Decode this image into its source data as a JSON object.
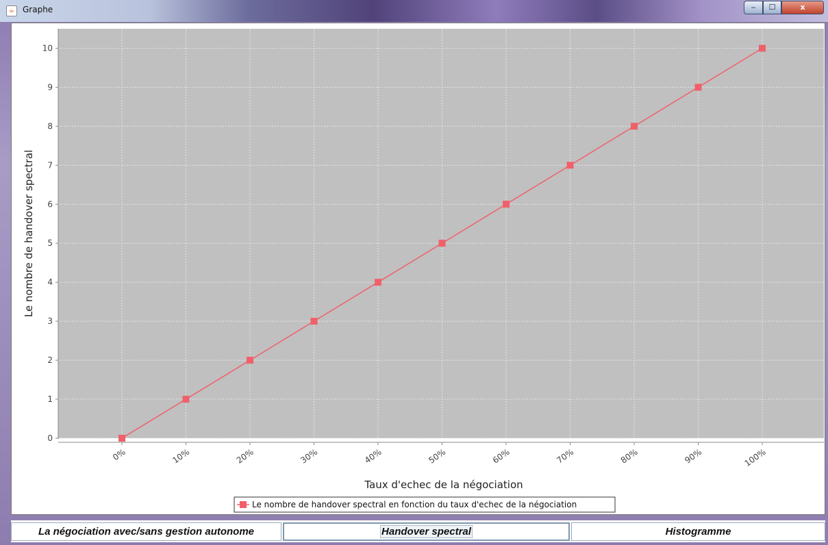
{
  "window": {
    "title": "Graphe",
    "icon": "java-cup-icon",
    "controls": {
      "minimize": "‒",
      "maximize": "☐",
      "close": "x"
    }
  },
  "tabs": [
    {
      "label": "La négociation avec/sans gestion autonome",
      "selected": false
    },
    {
      "label": "Handover spectral",
      "selected": true
    },
    {
      "label": "Histogramme",
      "selected": false
    }
  ],
  "chart_data": {
    "type": "line",
    "categories": [
      "0%",
      "10%",
      "20%",
      "30%",
      "40%",
      "50%",
      "60%",
      "70%",
      "80%",
      "90%",
      "100%"
    ],
    "series": [
      {
        "name": "Le nombre de handover spectral en fonction du taux d'echec de la négociation",
        "values": [
          0,
          1,
          2,
          3,
          4,
          5,
          6,
          7,
          8,
          9,
          10
        ],
        "color": "#f0606a"
      }
    ],
    "title": "",
    "xlabel": "Taux d'echec de la négociation",
    "ylabel": "Le nombre de handover spectral",
    "ylim": [
      0,
      10.5
    ],
    "yticks": [
      "0",
      "1",
      "2",
      "3",
      "4",
      "5",
      "6",
      "7",
      "8",
      "9",
      "10"
    ],
    "grid": true,
    "plot_background": "#c0c0c0",
    "legend_position": "bottom"
  }
}
